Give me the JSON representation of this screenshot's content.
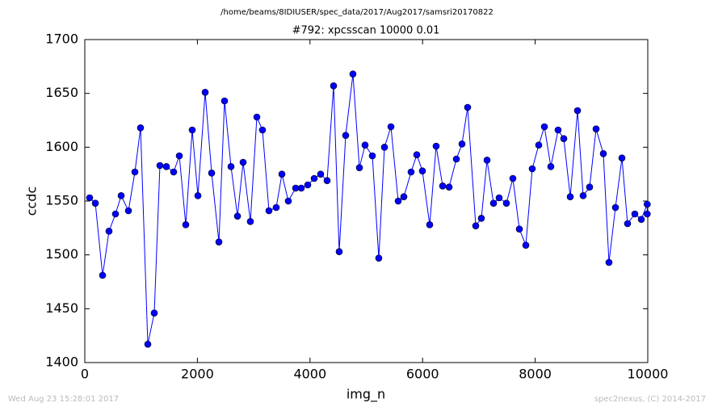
{
  "chart_data": {
    "type": "line",
    "suptitle": "/home/beams/8IDIUSER/spec_data/2017/Aug2017/samsri20170822",
    "title": "#792: xpcsscan 10000 0.01",
    "xlabel": "img_n",
    "ylabel": "ccdc",
    "annotations": [
      "Wed Aug 23 15:28:01 2017",
      "spec2nexus, (C) 2014-2017"
    ],
    "x": [
      86,
      187,
      316,
      430,
      545,
      646,
      775,
      890,
      990,
      1119,
      1234,
      1334,
      1449,
      1578,
      1679,
      1793,
      1908,
      2009,
      2138,
      2253,
      2382,
      2482,
      2597,
      2712,
      2812,
      2941,
      3056,
      3156,
      3271,
      3400,
      3501,
      3615,
      3745,
      3845,
      3960,
      4075,
      4189,
      4304,
      4419,
      4519,
      4634,
      4763,
      4878,
      4978,
      5108,
      5222,
      5323,
      5438,
      5567,
      5667,
      5796,
      5897,
      5997,
      6126,
      6241,
      6356,
      6471,
      6600,
      6700,
      6800,
      6944,
      7044,
      7145,
      7260,
      7360,
      7489,
      7604,
      7719,
      7834,
      7948,
      8063,
      8164,
      8278,
      8407,
      8508,
      8623,
      8752,
      8852,
      8967,
      9082,
      9211,
      9311,
      9426,
      9541,
      9641,
      9770,
      9885,
      9990,
      9990
    ],
    "series": [
      {
        "name": "ccdc",
        "color": "#0000ff",
        "values": [
          1553,
          1548,
          1481,
          1522,
          1538,
          1555,
          1541,
          1577,
          1618,
          1417,
          1446,
          1583,
          1582,
          1577,
          1592,
          1528,
          1616,
          1555,
          1651,
          1576,
          1512,
          1643,
          1582,
          1536,
          1586,
          1531,
          1628,
          1616,
          1541,
          1544,
          1575,
          1550,
          1562,
          1562,
          1565,
          1571,
          1575,
          1569,
          1657,
          1503,
          1611,
          1668,
          1581,
          1602,
          1592,
          1497,
          1600,
          1619,
          1550,
          1554,
          1577,
          1593,
          1578,
          1528,
          1601,
          1564,
          1563,
          1589,
          1603,
          1637,
          1527,
          1534,
          1588,
          1548,
          1553,
          1548,
          1571,
          1524,
          1509,
          1580,
          1602,
          1619,
          1582,
          1616,
          1608,
          1554,
          1634,
          1555,
          1563,
          1617,
          1594,
          1493,
          1544,
          1590,
          1529,
          1538,
          1533,
          1547,
          1538
        ]
      }
    ],
    "xlim": [
      0,
      10000
    ],
    "xticks": [
      0,
      2000,
      4000,
      6000,
      8000,
      10000
    ],
    "ylim": [
      1400,
      1700
    ],
    "yticks": [
      1400,
      1450,
      1500,
      1550,
      1600,
      1650,
      1700
    ],
    "grid": false
  }
}
